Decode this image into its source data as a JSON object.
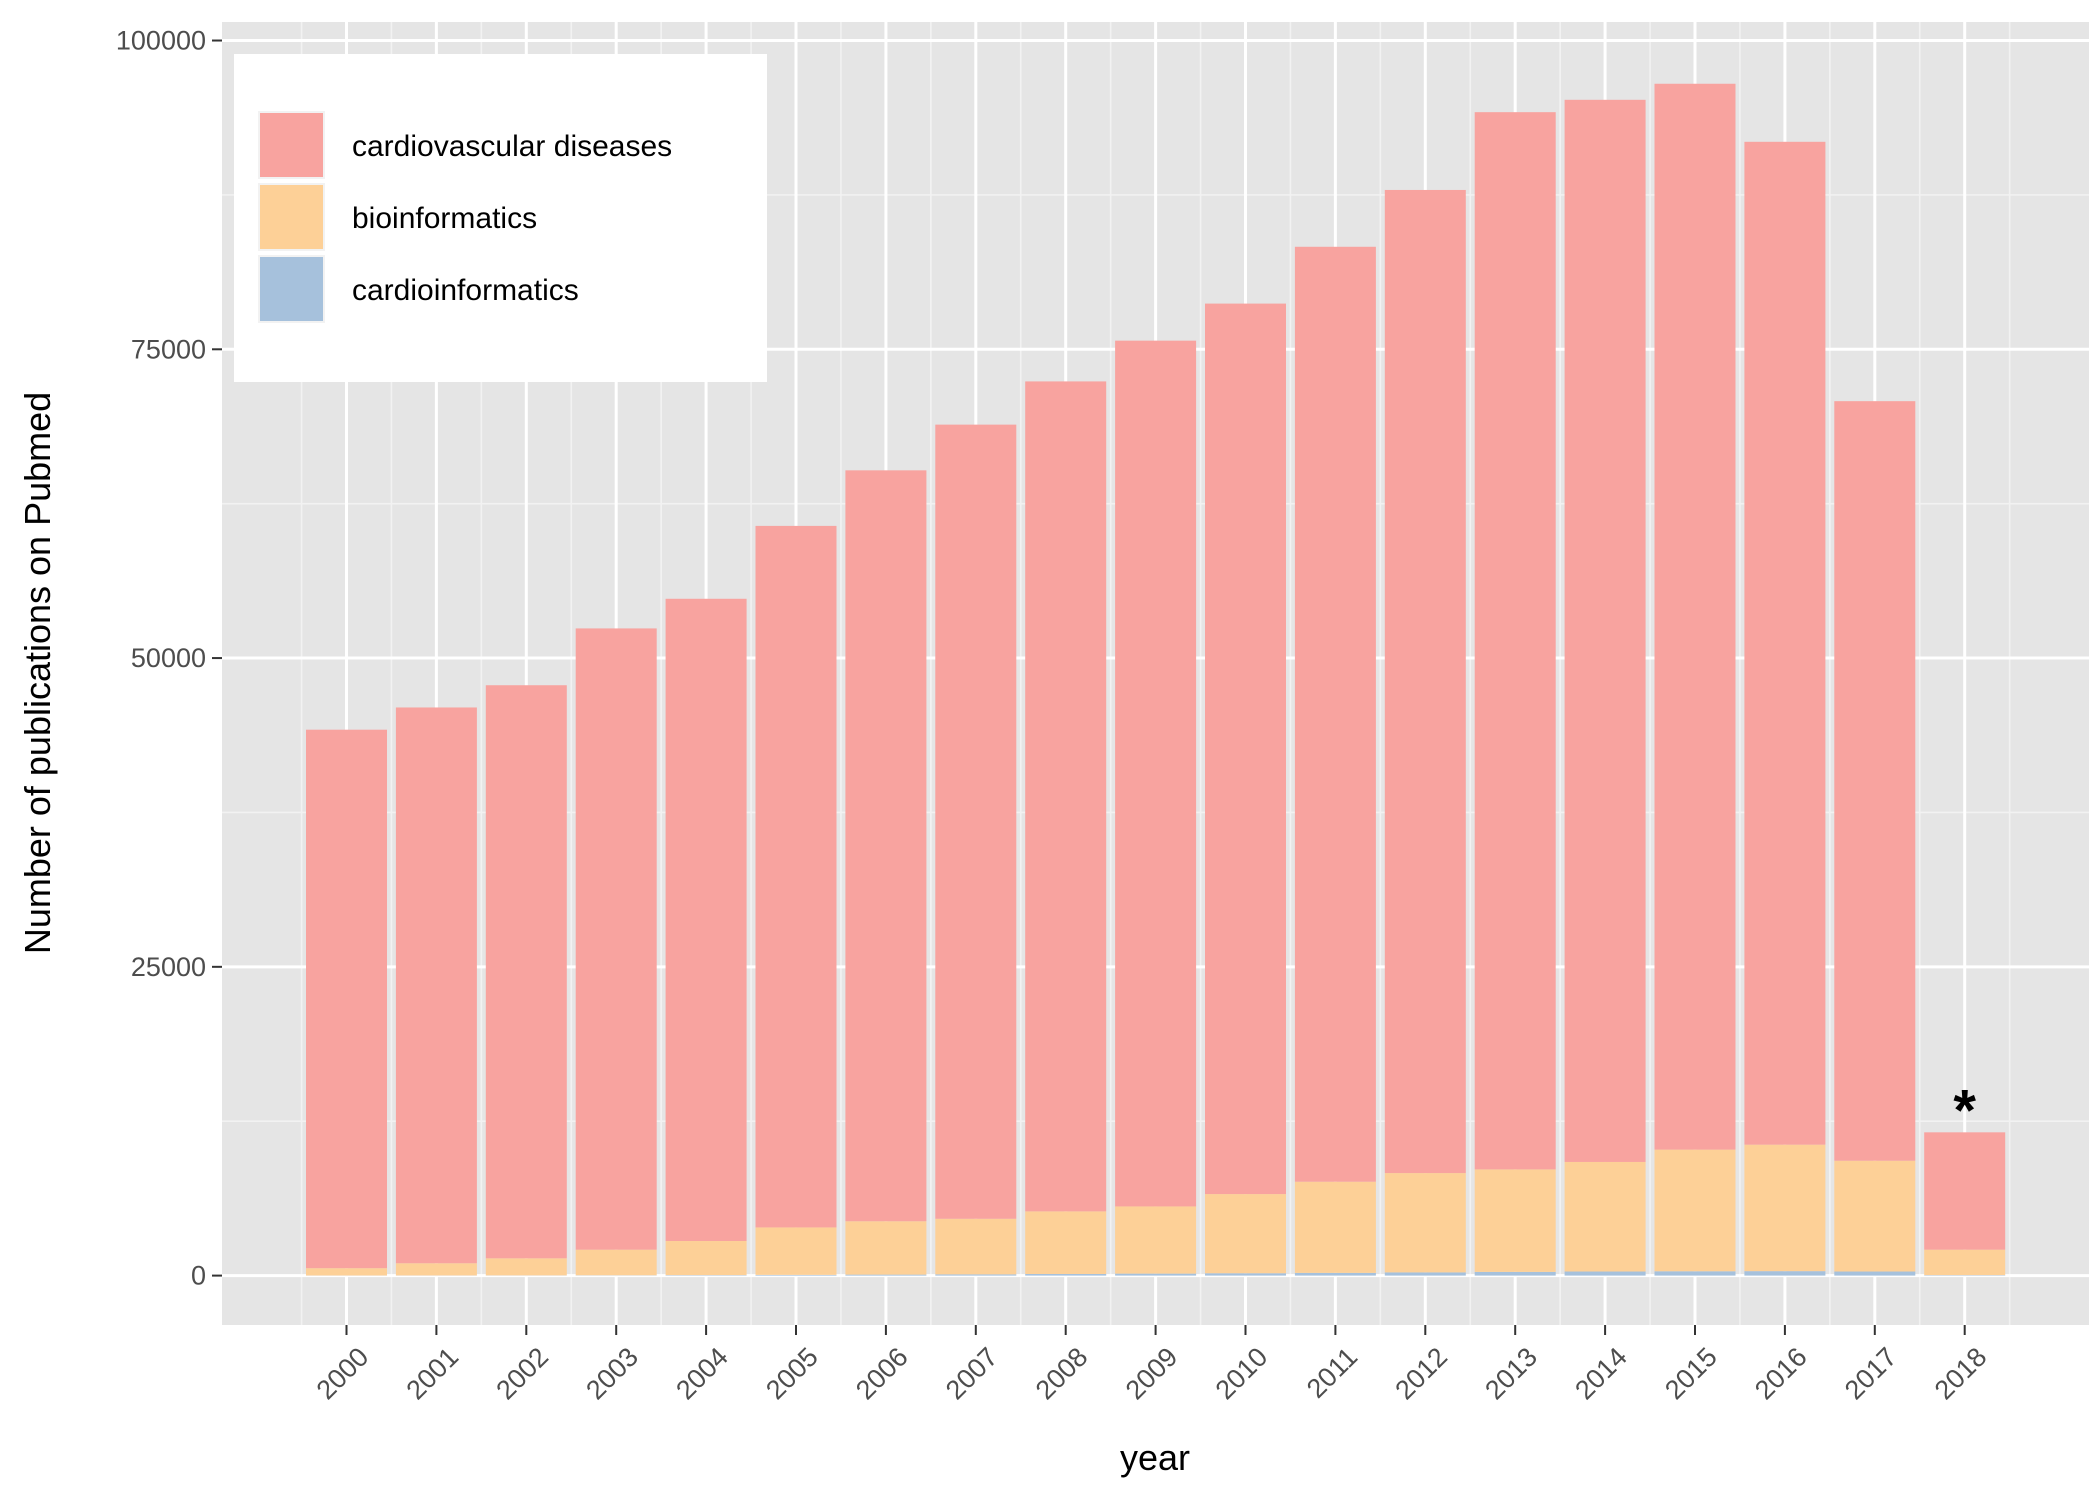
{
  "chart_data": {
    "type": "bar",
    "stacked": true,
    "xlabel": "year",
    "ylabel": "Number of publications on Pubmed",
    "ylim": [
      -4000,
      101500
    ],
    "y_ticks": [
      0,
      25000,
      50000,
      75000,
      100000
    ],
    "y_tick_labels": [
      "0",
      "25000",
      "50000",
      "75000",
      "100000"
    ],
    "grid": true,
    "legend_placement": "top-left",
    "categories": [
      "2000",
      "2001",
      "2002",
      "2003",
      "2004",
      "2005",
      "2006",
      "2007",
      "2008",
      "2009",
      "2010",
      "2011",
      "2012",
      "2013",
      "2014",
      "2015",
      "2016",
      "2017",
      "2018"
    ],
    "series": [
      {
        "name": "cardioinformatics",
        "color": "#a6c1dc",
        "values": [
          5,
          10,
          15,
          25,
          40,
          60,
          80,
          100,
          130,
          160,
          190,
          220,
          260,
          300,
          330,
          350,
          360,
          330,
          40
        ]
      },
      {
        "name": "bioinformatics",
        "color": "#fdd097",
        "values": [
          595,
          990,
          1385,
          2075,
          2760,
          3840,
          4320,
          4500,
          5070,
          5440,
          6410,
          7380,
          8040,
          8300,
          8870,
          9850,
          10240,
          8970,
          2060
        ]
      },
      {
        "name": "cardiovascular diseases",
        "color": "#f8a39f",
        "values": [
          43600,
          45000,
          46400,
          50300,
          52000,
          56800,
          60800,
          64300,
          67200,
          70100,
          72100,
          75700,
          79600,
          85600,
          86000,
          86300,
          81200,
          61500,
          9500
        ]
      }
    ],
    "legend": [
      {
        "label": "cardiovascular diseases",
        "color": "#f8a39f"
      },
      {
        "label": "bioinformatics",
        "color": "#fdd097"
      },
      {
        "label": "cardioinformatics",
        "color": "#a6c1dc"
      }
    ],
    "annotations": [
      {
        "text": "*",
        "category": "2018"
      }
    ],
    "panel_background": "#e5e5e5",
    "grid_color": "#ffffff"
  }
}
